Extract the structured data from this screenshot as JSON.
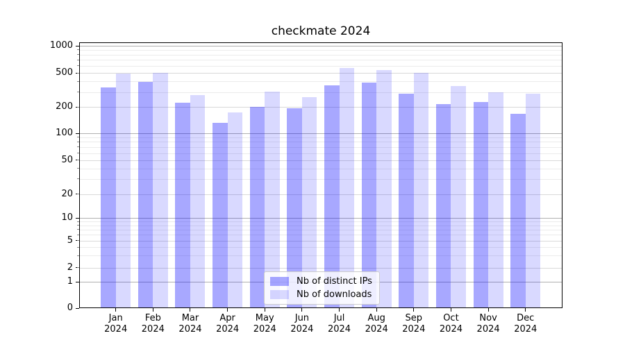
{
  "figure": {
    "title": "checkmate 2024",
    "background_color": "#ffffff",
    "bar_color_primary": "rgba(0,0,255,0.34)",
    "bar_color_secondary": "rgba(0,0,255,0.15)"
  },
  "chart_data": {
    "type": "bar",
    "title": "checkmate 2024",
    "categories": [
      "Jan 2024",
      "Feb 2024",
      "Mar 2024",
      "Apr 2024",
      "May 2024",
      "Jun 2024",
      "Jul 2024",
      "Aug 2024",
      "Sep 2024",
      "Oct 2024",
      "Nov 2024",
      "Dec 2024"
    ],
    "series": [
      {
        "name": "Nb of distinct IPs",
        "color": "rgba(0,0,255,0.34)",
        "values": [
          340,
          395,
          225,
          132,
          200,
          195,
          360,
          390,
          285,
          215,
          230,
          167
        ]
      },
      {
        "name": "Nb of downloads",
        "color": "rgba(0,0,255,0.15)",
        "values": [
          490,
          500,
          275,
          175,
          305,
          260,
          565,
          540,
          500,
          355,
          300,
          285
        ]
      }
    ],
    "xlabel": "",
    "ylabel": "",
    "yscale": "symlog",
    "ylim": [
      0,
      1000
    ],
    "yticks": [
      0,
      1,
      2,
      5,
      10,
      20,
      50,
      100,
      200,
      500,
      1000
    ],
    "ytick_labels": [
      "0",
      "1",
      "2",
      "5",
      "10",
      "20",
      "50",
      "100",
      "200",
      "500",
      "1000"
    ],
    "grid": "both",
    "legend": {
      "position": "lower center",
      "labels": [
        "Nb of distinct IPs",
        "Nb of downloads"
      ]
    }
  }
}
